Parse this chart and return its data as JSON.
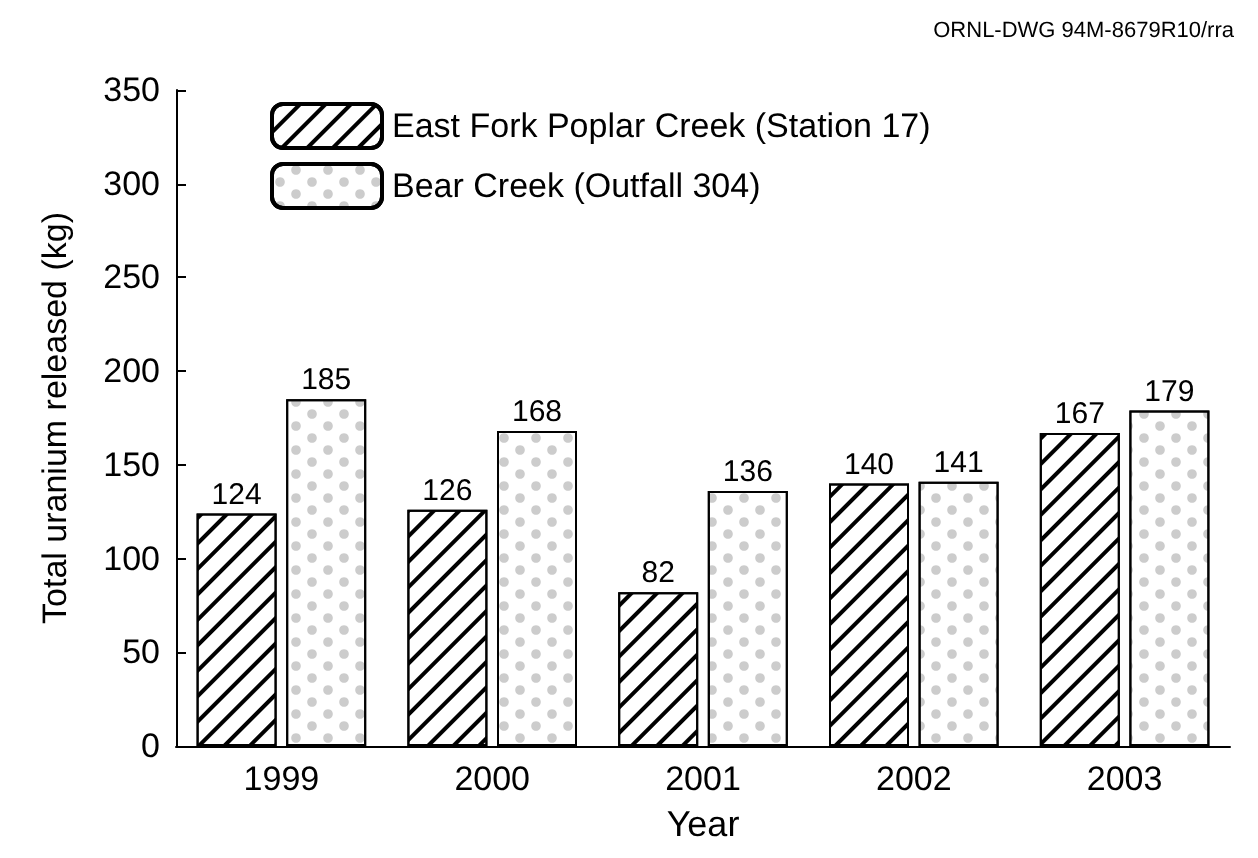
{
  "chart_data": {
    "type": "bar",
    "xlabel": "Year",
    "ylabel": "Total uranium released (kg)",
    "annotations": [
      "ORNL-DWG 94M-8679R10/rra"
    ],
    "categories": [
      "1999",
      "2000",
      "2001",
      "2002",
      "2003"
    ],
    "series": [
      {
        "name": "East Fork Poplar Creek (Station 17)",
        "color": "#ffffff",
        "values": [
          124,
          126,
          82,
          140,
          167
        ]
      },
      {
        "name": "Bear Creek (Outfall 304)",
        "color": "#ffffff",
        "values": [
          185,
          168,
          136,
          141,
          179
        ]
      }
    ],
    "ylim": [
      0,
      350
    ],
    "yticks": [
      0,
      50,
      100,
      150,
      200,
      250,
      300,
      350
    ],
    "data_labels": true,
    "grid": false,
    "legend": "top left"
  }
}
